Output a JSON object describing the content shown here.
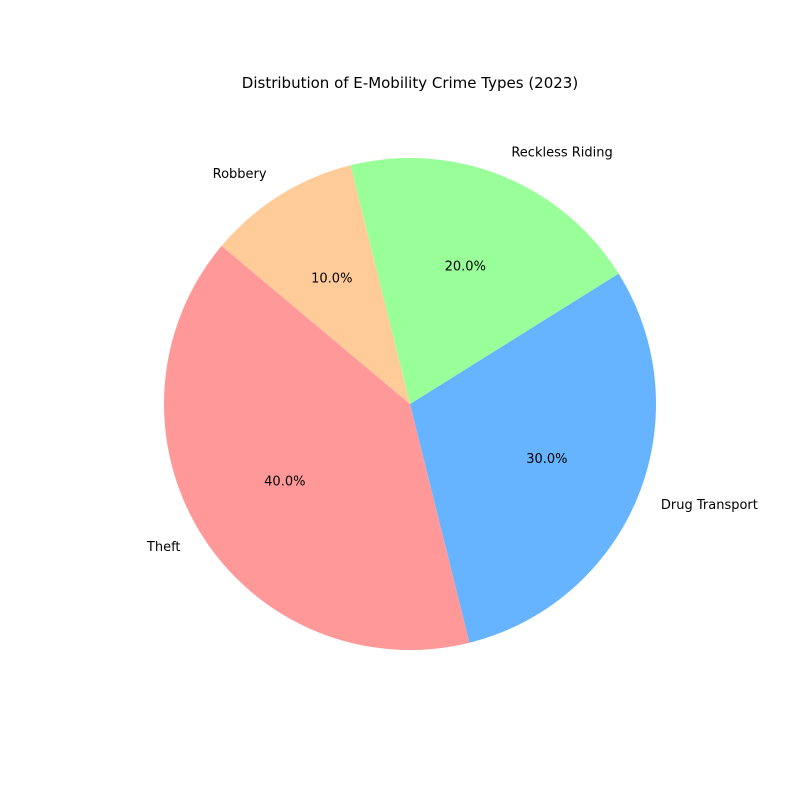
{
  "chart_data": {
    "type": "pie",
    "title": "Distribution of E-Mobility Crime Types (2023)",
    "categories": [
      "Theft",
      "Drug Transport",
      "Reckless Riding",
      "Robbery"
    ],
    "values": [
      40.0,
      30.0,
      20.0,
      10.0
    ],
    "percent_labels": [
      "40.0%",
      "30.0%",
      "20.0%",
      "10.0%"
    ],
    "colors": [
      "#ff9999",
      "#66b3ff",
      "#99ff99",
      "#ffcc99"
    ],
    "start_angle_deg": 140,
    "direction": "counterclockwise"
  }
}
